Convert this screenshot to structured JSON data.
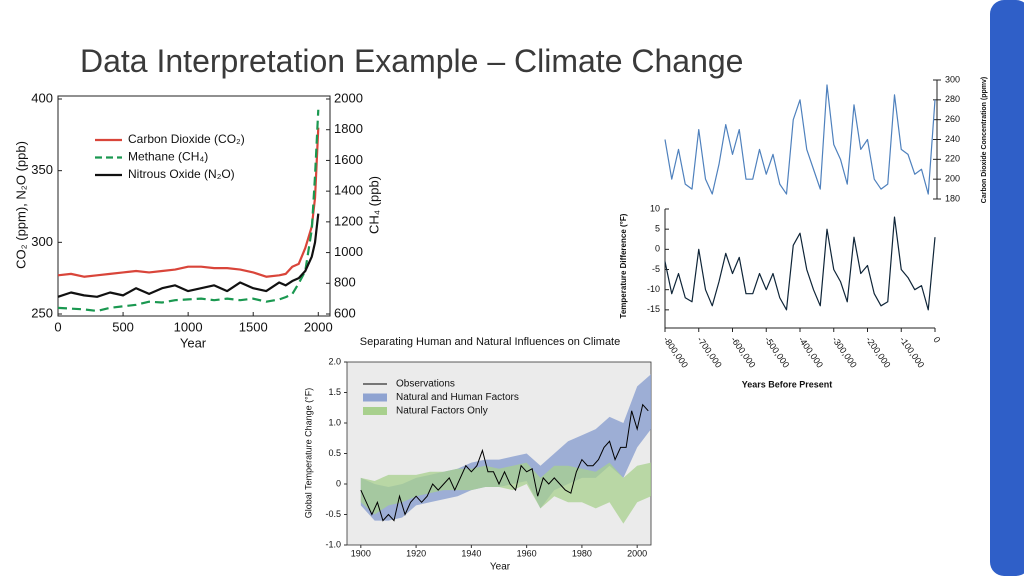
{
  "title": "Data Interpretation Example – Climate Change",
  "chart_data": [
    {
      "type": "line",
      "x_label": "Year",
      "y_label": "CO₂ (ppm), N₂O (ppb)",
      "y2_label": "CH₄ (ppb)",
      "xlim": [
        0,
        2090
      ],
      "xticks": [
        0,
        500,
        1000,
        1500,
        2000
      ],
      "ylim": [
        250,
        400
      ],
      "yticks": [
        250,
        300,
        350,
        400
      ],
      "y2lim": [
        600,
        2000
      ],
      "y2ticks": [
        600,
        800,
        1000,
        1200,
        1400,
        1600,
        1800,
        2000
      ],
      "x": [
        0,
        100,
        200,
        300,
        400,
        500,
        600,
        700,
        800,
        900,
        1000,
        1100,
        1200,
        1300,
        1400,
        1500,
        1600,
        1700,
        1750,
        1800,
        1850,
        1900,
        1950,
        1975,
        2000
      ],
      "series": [
        {
          "name": "Carbon Dioxide (CO₂)",
          "color": "#d9453a",
          "values": [
            277,
            278,
            276,
            277,
            278,
            279,
            280,
            279,
            280,
            281,
            283,
            283,
            282,
            282,
            281,
            279,
            276,
            277,
            278,
            283,
            285,
            296,
            311,
            331,
            380
          ]
        },
        {
          "name": "Methane (CH₄)",
          "color": "#1a9850",
          "axis": "y2",
          "dashed": true,
          "values": [
            640,
            635,
            630,
            620,
            640,
            650,
            660,
            680,
            675,
            690,
            695,
            700,
            690,
            700,
            690,
            700,
            680,
            695,
            710,
            730,
            800,
            880,
            1150,
            1500,
            1930
          ]
        },
        {
          "name": "Nitrous Oxide (N₂O)",
          "color": "#111111",
          "values": [
            262,
            265,
            263,
            262,
            265,
            263,
            268,
            264,
            268,
            270,
            266,
            268,
            270,
            266,
            272,
            268,
            266,
            272,
            270,
            273,
            275,
            280,
            290,
            300,
            320
          ]
        }
      ]
    },
    {
      "type": "line",
      "y2_label": "Carbon Dioxide Concentration (ppmv)",
      "xlim": [
        -800000,
        0
      ],
      "y2lim": [
        180,
        300
      ],
      "y2ticks": [
        180,
        200,
        220,
        240,
        260,
        280,
        300
      ],
      "x": [
        -800000,
        -780000,
        -760000,
        -740000,
        -720000,
        -700000,
        -680000,
        -660000,
        -640000,
        -620000,
        -600000,
        -580000,
        -560000,
        -540000,
        -520000,
        -500000,
        -480000,
        -460000,
        -440000,
        -420000,
        -400000,
        -380000,
        -360000,
        -340000,
        -320000,
        -300000,
        -280000,
        -260000,
        -240000,
        -220000,
        -200000,
        -180000,
        -160000,
        -140000,
        -120000,
        -100000,
        -80000,
        -60000,
        -40000,
        -20000,
        0
      ],
      "series": [
        {
          "color": "#4f81bd",
          "axis": "y2",
          "values": [
            240,
            200,
            230,
            195,
            190,
            250,
            200,
            185,
            215,
            255,
            225,
            250,
            200,
            200,
            230,
            205,
            225,
            195,
            185,
            260,
            280,
            230,
            210,
            190,
            295,
            235,
            220,
            195,
            275,
            230,
            240,
            200,
            190,
            195,
            285,
            230,
            225,
            205,
            210,
            185,
            280
          ]
        }
      ]
    },
    {
      "type": "line",
      "y_label": "Temperature Difference (°F)",
      "x_label": "Years Before Present",
      "xlim": [
        -800000,
        0
      ],
      "xticks": [
        {
          "value": -800000,
          "label": "-800,000"
        },
        {
          "value": -700000,
          "label": "-700,000"
        },
        {
          "value": -600000,
          "label": "-600,000"
        },
        {
          "value": -500000,
          "label": "-500,000"
        },
        {
          "value": -400000,
          "label": "-400,000"
        },
        {
          "value": -300000,
          "label": "-300,000"
        },
        {
          "value": -200000,
          "label": "-200,000"
        },
        {
          "value": -100000,
          "label": "-100,000"
        },
        0
      ],
      "ylim": [
        -19.5,
        10
      ],
      "yticks": [
        -15,
        -10,
        -5,
        0,
        5,
        10
      ],
      "x": [
        -800000,
        -780000,
        -760000,
        -740000,
        -720000,
        -700000,
        -680000,
        -660000,
        -640000,
        -620000,
        -600000,
        -580000,
        -560000,
        -540000,
        -520000,
        -500000,
        -480000,
        -460000,
        -440000,
        -420000,
        -400000,
        -380000,
        -360000,
        -340000,
        -320000,
        -300000,
        -280000,
        -260000,
        -240000,
        -220000,
        -200000,
        -180000,
        -160000,
        -140000,
        -120000,
        -100000,
        -80000,
        -60000,
        -40000,
        -20000,
        0
      ],
      "series": [
        {
          "color": "#0f2538",
          "values": [
            -3,
            -11,
            -6,
            -12,
            -13,
            0,
            -10,
            -14,
            -8,
            -1,
            -6,
            -2,
            -11,
            -11,
            -6,
            -10,
            -6,
            -12,
            -15,
            1,
            4,
            -5,
            -10,
            -14,
            5,
            -5,
            -8,
            -13,
            3,
            -6,
            -4,
            -11,
            -14,
            -13,
            8,
            -5,
            -7,
            -10,
            -9,
            -15,
            3
          ]
        }
      ]
    },
    {
      "type": "band",
      "title": "Separating Human and Natural Influences on Climate",
      "x_label": "Year",
      "y_label": "Global Temperature Change (°F)",
      "xlim": [
        1895,
        2005
      ],
      "xticks": [
        1900,
        1920,
        1940,
        1960,
        1980,
        2000
      ],
      "ylim": [
        -1,
        2
      ],
      "yticks": [
        {
          "value": -1,
          "label": "-1.0"
        },
        -0.5,
        0,
        0.5,
        {
          "value": 1,
          "label": "1.0"
        },
        1.5,
        {
          "value": 2,
          "label": "2.0"
        }
      ],
      "x": [
        1900,
        1905,
        1910,
        1915,
        1920,
        1925,
        1930,
        1935,
        1940,
        1945,
        1950,
        1955,
        1960,
        1965,
        1970,
        1975,
        1980,
        1985,
        1990,
        1995,
        2000,
        2005
      ],
      "bands": [
        {
          "name": "Natural and Human Factors",
          "color": "#8fa3d1",
          "low": [
            -0.35,
            -0.6,
            -0.6,
            -0.55,
            -0.35,
            -0.3,
            -0.25,
            -0.2,
            -0.1,
            -0.05,
            -0.05,
            0,
            0.05,
            -0.4,
            -0.1,
            0,
            0.1,
            0.1,
            0.3,
            0.1,
            0.6,
            0.9
          ],
          "high": [
            0.1,
            0,
            -0.05,
            0,
            0.1,
            0.15,
            0.2,
            0.25,
            0.35,
            0.4,
            0.4,
            0.45,
            0.5,
            0.3,
            0.5,
            0.7,
            0.8,
            0.9,
            1.1,
            1,
            1.6,
            1.8
          ]
        },
        {
          "name": "Natural Factors Only",
          "color": "#a8d08d",
          "low": [
            -0.3,
            -0.5,
            -0.35,
            -0.3,
            -0.2,
            -0.15,
            -0.1,
            -0.1,
            -0.1,
            -0.05,
            -0.05,
            -0.1,
            0,
            -0.4,
            -0.2,
            -0.3,
            -0.3,
            -0.4,
            -0.3,
            -0.65,
            -0.3,
            -0.2
          ],
          "high": [
            0.1,
            0.05,
            0.15,
            0.15,
            0.15,
            0.2,
            0.2,
            0.25,
            0.25,
            0.3,
            0.25,
            0.3,
            0.35,
            0.1,
            0.3,
            0.3,
            0.25,
            0.2,
            0.35,
            0.1,
            0.3,
            0.35
          ]
        }
      ],
      "observations": {
        "name": "Observations",
        "color": "#000000",
        "x": [
          1900,
          1902,
          1904,
          1906,
          1908,
          1910,
          1912,
          1914,
          1916,
          1918,
          1920,
          1922,
          1924,
          1926,
          1928,
          1930,
          1932,
          1934,
          1936,
          1938,
          1940,
          1942,
          1944,
          1946,
          1948,
          1950,
          1952,
          1954,
          1956,
          1958,
          1960,
          1962,
          1964,
          1966,
          1968,
          1970,
          1972,
          1974,
          1976,
          1978,
          1980,
          1982,
          1984,
          1986,
          1988,
          1990,
          1992,
          1994,
          1996,
          1998,
          2000,
          2002,
          2004
        ],
        "values": [
          -0.1,
          -0.3,
          -0.5,
          -0.3,
          -0.6,
          -0.5,
          -0.6,
          -0.2,
          -0.5,
          -0.3,
          -0.2,
          -0.3,
          -0.2,
          0,
          -0.1,
          0,
          0.1,
          -0.1,
          0.1,
          0.3,
          0.2,
          0.3,
          0.55,
          0.2,
          0.2,
          0,
          0.2,
          0,
          -0.1,
          0.3,
          0.2,
          0.25,
          -0.2,
          0.1,
          0,
          0.1,
          0,
          -0.1,
          -0.15,
          0.2,
          0.4,
          0.3,
          0.3,
          0.4,
          0.6,
          0.7,
          0.4,
          0.6,
          0.6,
          1.2,
          0.9,
          1.3,
          1.2
        ]
      }
    }
  ]
}
